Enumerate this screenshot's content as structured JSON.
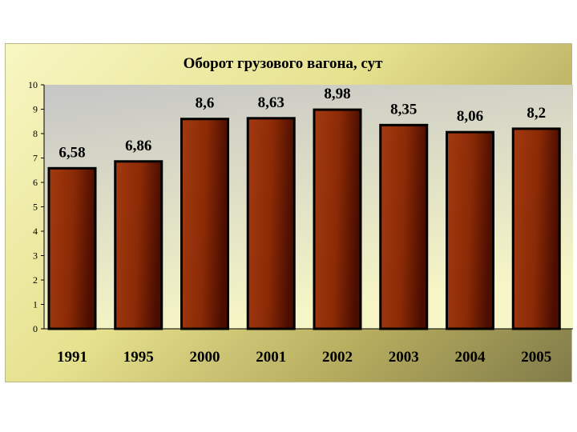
{
  "chart_data": {
    "type": "bar",
    "title": "Оборот грузового вагона, сут",
    "categories": [
      "1991",
      "1995",
      "2000",
      "2001",
      "2002",
      "2003",
      "2004",
      "2005"
    ],
    "values": [
      6.58,
      6.86,
      8.6,
      8.63,
      8.98,
      8.35,
      8.06,
      8.2
    ],
    "data_labels": [
      "6,58",
      "6,86",
      "8,6",
      "8,63",
      "8,98",
      "8,35",
      "8,06",
      "8,2"
    ],
    "ylim": [
      0,
      10
    ],
    "y_ticks": [
      "0",
      "1",
      "2",
      "3",
      "4",
      "5",
      "6",
      "7",
      "8",
      "9",
      "10"
    ],
    "grid": false,
    "legend": "none",
    "colors": {
      "bar_light": "#a33a10",
      "bar_dark": "#4a0d00",
      "bar_outline": "#000000",
      "plot_area_top": "#c6c6c6",
      "plot_area_bottom": "#f6f6c6"
    }
  }
}
